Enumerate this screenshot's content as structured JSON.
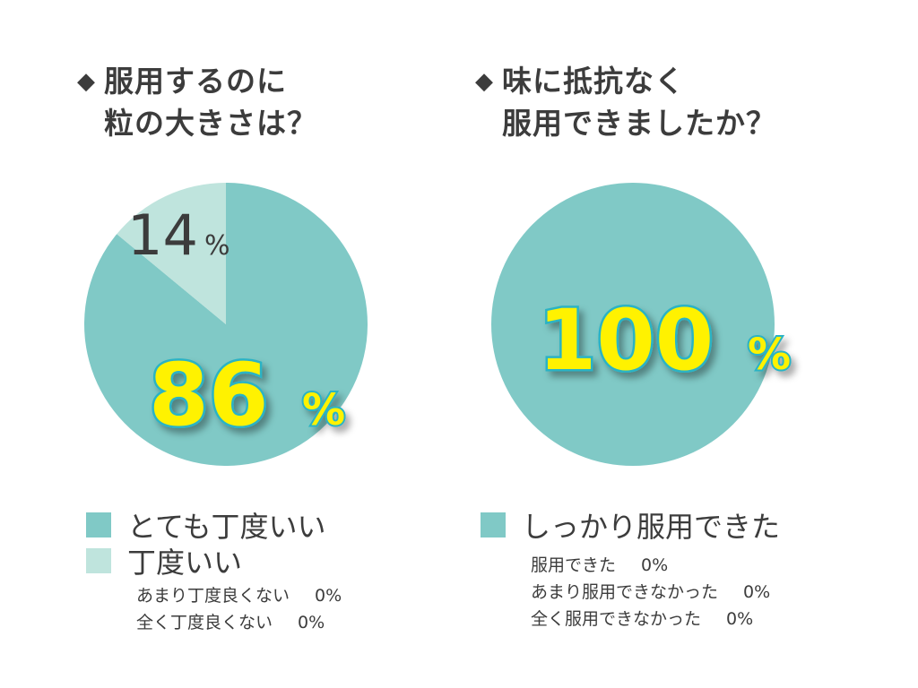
{
  "colors": {
    "primary": "#80c9c6",
    "secondary": "#bfe4dd",
    "highlight": "#fff200",
    "outline": "#29b3c5",
    "text": "#3c3c3c"
  },
  "left": {
    "title": {
      "bullet": "◆",
      "line1": "服用するのに",
      "line2": "粒の大きさは？"
    },
    "labels": {
      "big_value": "86",
      "big_unit": "%",
      "small_value": "14",
      "small_unit": "%"
    },
    "legend": [
      {
        "label": "とても丁度いい",
        "color": "#80c9c6"
      },
      {
        "label": "丁度いい",
        "color": "#bfe4dd"
      }
    ],
    "zero_items": [
      {
        "label": "あまり丁度良くない",
        "value": "0%"
      },
      {
        "label": "全く丁度良くない",
        "value": "0%"
      }
    ]
  },
  "right": {
    "title": {
      "bullet": "◆",
      "line1": "味に抵抗なく",
      "line2": "服用できましたか？"
    },
    "labels": {
      "big_value": "100",
      "big_unit": "%"
    },
    "legend": [
      {
        "label": "しっかり服用できた",
        "color": "#80c9c6"
      }
    ],
    "zero_items": [
      {
        "label": "服用できた",
        "value": "0%"
      },
      {
        "label": "あまり服用できなかった",
        "value": "0%"
      },
      {
        "label": "全く服用できなかった",
        "value": "0%"
      }
    ]
  },
  "chart_data": [
    {
      "type": "pie",
      "title": "服用するのに粒の大きさは？",
      "categories": [
        "とても丁度いい",
        "丁度いい",
        "あまり丁度良くない",
        "全く丁度良くない"
      ],
      "values": [
        86,
        14,
        0,
        0
      ],
      "colors": [
        "#80c9c6",
        "#bfe4dd",
        "#80c9c6",
        "#80c9c6"
      ]
    },
    {
      "type": "pie",
      "title": "味に抵抗なく服用できましたか？",
      "categories": [
        "しっかり服用できた",
        "服用できた",
        "あまり服用できなかった",
        "全く服用できなかった"
      ],
      "values": [
        100,
        0,
        0,
        0
      ],
      "colors": [
        "#80c9c6",
        "#80c9c6",
        "#80c9c6",
        "#80c9c6"
      ]
    }
  ]
}
